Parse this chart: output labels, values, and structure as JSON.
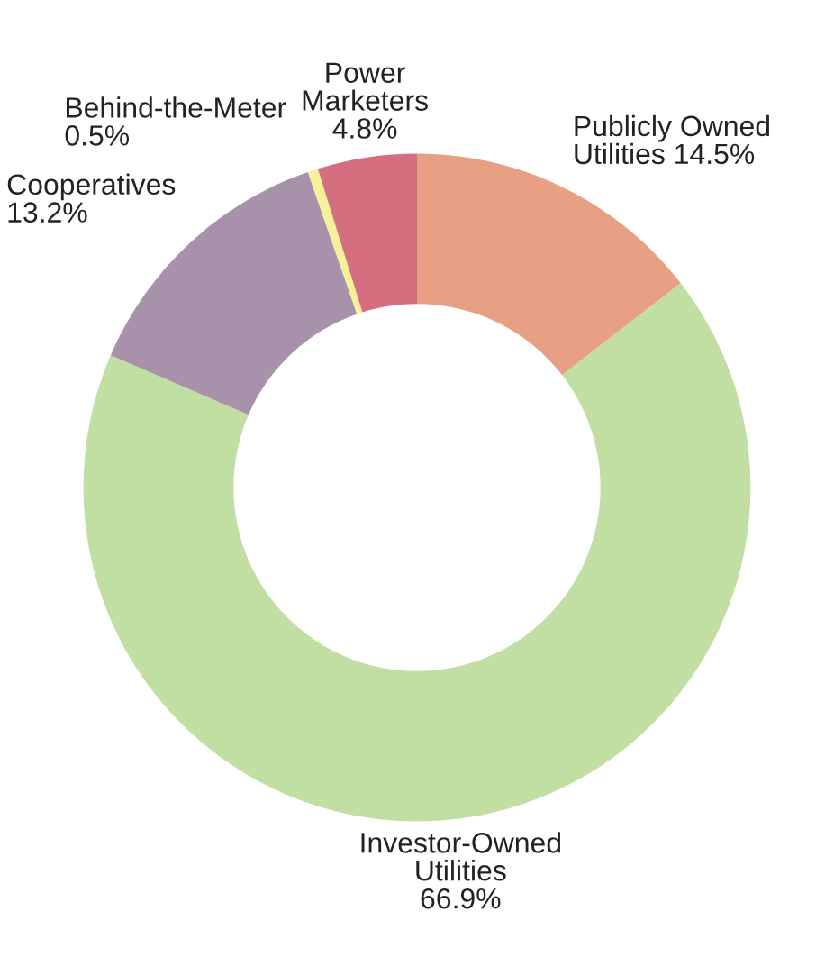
{
  "chart_data": {
    "type": "donut",
    "categories": [
      "Publicly Owned Utilities",
      "Investor-Owned Utilities",
      "Cooperatives",
      "Behind-the-Meter",
      "Power Marketers"
    ],
    "values": [
      14.5,
      66.9,
      13.2,
      0.5,
      4.8
    ],
    "colors": [
      "#e8a084",
      "#c2dfa3",
      "#a892ab",
      "#f7f29a",
      "#d56e7e"
    ],
    "value_labels": [
      "14.5%",
      "66.9%",
      "13.2%",
      "0.5%",
      "4.8%"
    ]
  }
}
